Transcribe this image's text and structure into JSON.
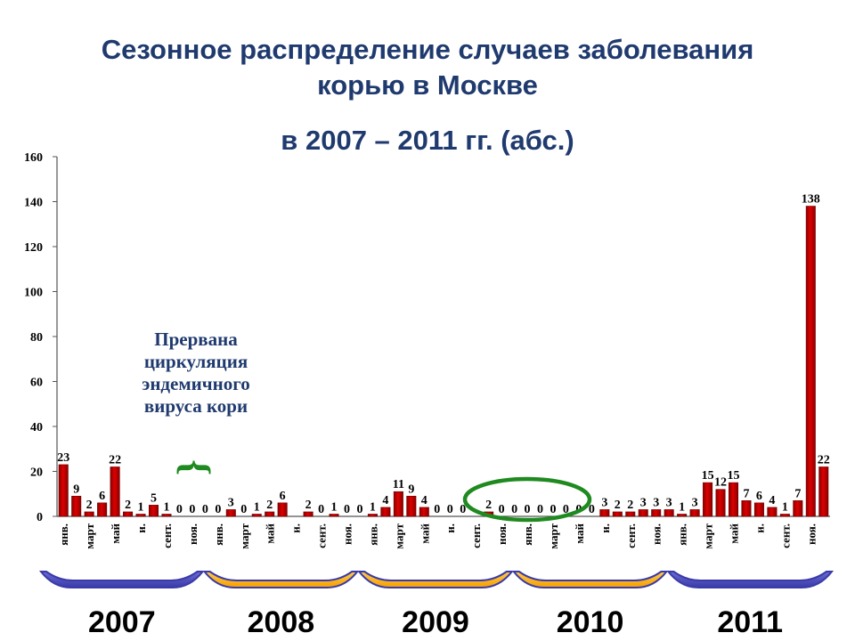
{
  "title": {
    "line1": "Сезонное распределение случаев заболевания",
    "line2": "корью в Москве",
    "line3": "в 2007 – 2011 гг. (абс.)"
  },
  "annotation": {
    "line1": "Прервана",
    "line2": "циркуляция",
    "line3": "эндемичного",
    "line4": "вируса кори",
    "brace": "{"
  },
  "colors": {
    "bar": "#dd0000",
    "bar_dark": "#8b0000",
    "band_blue": "#3a3aa8",
    "band_orange": "#f5a000",
    "annotation_text": "#1f3a6e",
    "brace": "#1f8a1f",
    "ellipse": "#1f8a1f",
    "title": "#1f3a6e"
  },
  "chart_data": {
    "type": "bar",
    "ylim": [
      0,
      160
    ],
    "yticks": [
      0,
      20,
      40,
      60,
      80,
      100,
      120,
      140,
      160
    ],
    "grid": false,
    "values": [
      23,
      9,
      2,
      6,
      22,
      2,
      1,
      5,
      1,
      0,
      0,
      0,
      0,
      3,
      0,
      1,
      2,
      6,
      0,
      2,
      0,
      1,
      0,
      0,
      1,
      4,
      11,
      9,
      4,
      0,
      0,
      0,
      0,
      2,
      0,
      0,
      0,
      0,
      0,
      0,
      0,
      0,
      3,
      2,
      2,
      3,
      3,
      3,
      1,
      3,
      15,
      12,
      15,
      7,
      6,
      4,
      1,
      7,
      138,
      22
    ],
    "labels": [
      "23",
      "9",
      "2",
      "6",
      "22",
      "2",
      "1",
      "5",
      "1",
      "0",
      "0",
      "0",
      "0",
      "3",
      "0",
      "1",
      "2",
      "6",
      "",
      "2",
      "0",
      "1",
      "0",
      "0",
      "1",
      "4",
      "11",
      "9",
      "4",
      "0",
      "0",
      "0",
      "",
      "2",
      "0",
      "0",
      "0",
      "0",
      "0",
      "0",
      "0",
      "0",
      "3",
      "2",
      "2",
      "3",
      "3",
      "3",
      "1",
      "3",
      "15",
      "12",
      "15",
      "7",
      "6",
      "4",
      "1",
      "7",
      "138",
      "22"
    ],
    "xtick_labels": [
      "янв.",
      "",
      "март",
      "",
      "май",
      "",
      "и.",
      "",
      "сент.",
      "",
      "ноя.",
      "",
      "янв.",
      "",
      "март",
      "",
      "май",
      "",
      "и.",
      "",
      "сент.",
      "",
      "ноя.",
      "",
      "янв.",
      "",
      "март",
      "",
      "май",
      "",
      "и.",
      "",
      "сент.",
      "",
      "ноя.",
      "",
      "янв.",
      "",
      "март",
      "",
      "май",
      "",
      "и.",
      "",
      "сент.",
      "",
      "ноя.",
      "",
      "янв.",
      "",
      "март",
      "",
      "май",
      "",
      "и.",
      "",
      "сент.",
      "",
      "ноя.",
      ""
    ],
    "years": [
      "2007",
      "2008",
      "2009",
      "2010",
      "2011"
    ]
  }
}
